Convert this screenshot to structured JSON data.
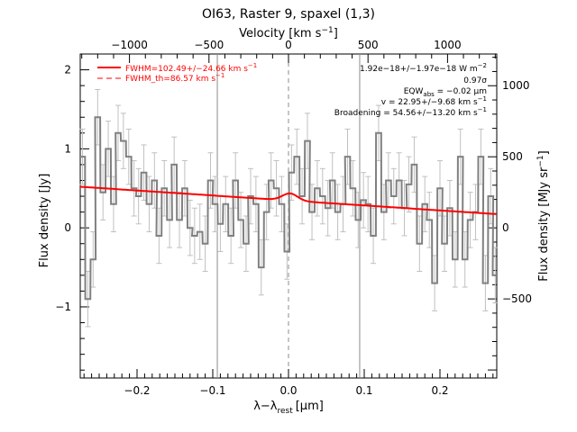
{
  "chart_data": {
    "type": "line",
    "title": "OI63, Raster 9, spaxel (1,3)",
    "xlabel": "λ−λ",
    "xlabel_sub": "rest",
    "xlabel_unit": "[μm]",
    "ylabel": "Flux density [Jy]",
    "ylabel_right": "Flux density [MJy sr",
    "ylabel_right_sup": "−1",
    "ylabel_right_end": "]",
    "top_xlabel": "Velocity [km s",
    "top_xlabel_sup": "−1",
    "top_xlabel_end": "]",
    "xlim": [
      -0.275,
      0.275
    ],
    "ylim": [
      -1.9,
      2.2
    ],
    "xticks": [
      -0.2,
      -0.1,
      0.0,
      0.1,
      0.2
    ],
    "xtick_labels": [
      "−0.2",
      "−0.1",
      "0.0",
      "0.1",
      "0.2"
    ],
    "yticks": [
      -1,
      0,
      1,
      2
    ],
    "ytick_labels": [
      "−1",
      "0",
      "1",
      "2"
    ],
    "top_ticks_km_s": [
      -1000,
      -500,
      0,
      500,
      1000
    ],
    "top_tick_labels": [
      "−1000",
      "−500",
      "0",
      "500",
      "1000"
    ],
    "right_ticks_MJy_sr": [
      -500,
      0,
      500,
      1000
    ],
    "right_tick_labels": [
      "−500",
      "0",
      "500",
      "1000"
    ],
    "right_axis_per_Jy": 556,
    "velocity_per_um": 4762,
    "vertical_lines": [
      -0.094,
      0.0,
      0.094
    ],
    "legend": {
      "fwhm_prefix": "FWHM=102.49+/−24.66 km s",
      "fwhm_th_prefix": "FWHM_th=86.57 km s",
      "unit_sup": "−1",
      "position": "top-left"
    },
    "annotations": {
      "flux_prefix": "1.92e−18+/−1.97e−18 W m",
      "flux_sup": "−2",
      "sigma": "0.97σ",
      "eqw_prefix": "EQW",
      "eqw_sub": "abs",
      "eqw_value": " = −0.02 μm",
      "v": "v = 22.95+/−9.68 km s",
      "v_sup": "−1",
      "broadening": "Broadening = 54.56+/−13.20 km s",
      "broadening_sup": "−1"
    },
    "colors": {
      "data": "#808080",
      "fit": "#ff0000",
      "error": "#c0c0c0",
      "axis": "#000000"
    },
    "series": [
      {
        "x": [
          -0.272,
          -0.265,
          -0.258,
          -0.252,
          -0.245,
          -0.238,
          -0.231,
          -0.225,
          -0.218,
          -0.211,
          -0.204,
          -0.198,
          -0.191,
          -0.184,
          -0.177,
          -0.171,
          -0.164,
          -0.157,
          -0.151,
          -0.144,
          -0.137,
          -0.13,
          -0.124,
          -0.117,
          -0.11,
          -0.103,
          -0.097,
          -0.09,
          -0.083,
          -0.076,
          -0.07,
          -0.063,
          -0.056,
          -0.05,
          -0.043,
          -0.036,
          -0.029,
          -0.023,
          -0.016,
          -0.009,
          -0.002,
          0.004,
          0.011,
          0.018,
          0.025,
          0.031,
          0.038,
          0.045,
          0.052,
          0.058,
          0.065,
          0.072,
          0.078,
          0.085,
          0.092,
          0.099,
          0.105,
          0.112,
          0.119,
          0.126,
          0.132,
          0.139,
          0.146,
          0.153,
          0.159,
          0.166,
          0.173,
          0.18,
          0.186,
          0.193,
          0.2,
          0.206,
          0.213,
          0.22,
          0.227,
          0.233,
          0.24,
          0.247,
          0.254,
          0.26,
          0.267,
          0.273
        ],
        "y": [
          0.9,
          -0.9,
          -0.4,
          1.4,
          0.45,
          1.0,
          0.3,
          1.2,
          1.1,
          0.9,
          0.5,
          0.4,
          0.7,
          0.3,
          0.6,
          -0.1,
          0.5,
          0.1,
          0.8,
          0.1,
          0.5,
          0.0,
          -0.1,
          -0.05,
          -0.2,
          0.6,
          0.3,
          0.05,
          0.3,
          -0.1,
          0.6,
          0.1,
          -0.2,
          0.4,
          0.3,
          -0.5,
          0.2,
          0.6,
          0.5,
          0.3,
          -0.3,
          0.7,
          0.9,
          0.4,
          1.1,
          0.2,
          0.5,
          0.4,
          0.25,
          0.6,
          0.2,
          0.3,
          0.9,
          0.5,
          0.1,
          0.35,
          0.3,
          -0.1,
          1.2,
          0.2,
          0.6,
          0.4,
          0.6,
          0.25,
          0.55,
          0.8,
          -0.2,
          0.3,
          0.1,
          -0.7,
          0.5,
          -0.2,
          0.25,
          -0.4,
          0.9,
          -0.4,
          0.1,
          0.2,
          0.9,
          -0.7,
          0.4,
          -0.6
        ],
        "err": [
          0.35,
          0.35,
          0.35,
          0.35,
          0.35,
          0.35,
          0.35,
          0.35,
          0.35,
          0.35,
          0.35,
          0.35,
          0.35,
          0.35,
          0.35,
          0.35,
          0.35,
          0.35,
          0.35,
          0.35,
          0.35,
          0.35,
          0.35,
          0.35,
          0.35,
          0.35,
          0.35,
          0.35,
          0.35,
          0.35,
          0.35,
          0.35,
          0.35,
          0.35,
          0.35,
          0.35,
          0.35,
          0.35,
          0.35,
          0.35,
          0.35,
          0.35,
          0.35,
          0.35,
          0.35,
          0.35,
          0.35,
          0.35,
          0.35,
          0.35,
          0.35,
          0.35,
          0.35,
          0.35,
          0.35,
          0.35,
          0.35,
          0.35,
          0.35,
          0.35,
          0.35,
          0.35,
          0.35,
          0.35,
          0.35,
          0.35,
          0.35,
          0.35,
          0.35,
          0.35,
          0.35,
          0.35,
          0.35,
          0.35,
          0.35,
          0.35,
          0.35,
          0.35,
          0.35,
          0.35,
          0.35,
          0.35
        ]
      },
      {
        "fit": {
          "baseline_start": 0.52,
          "baseline_slope": -0.63,
          "peak_center": 0.002,
          "peak_amp": 0.09,
          "peak_sigma": 0.01
        }
      }
    ]
  }
}
